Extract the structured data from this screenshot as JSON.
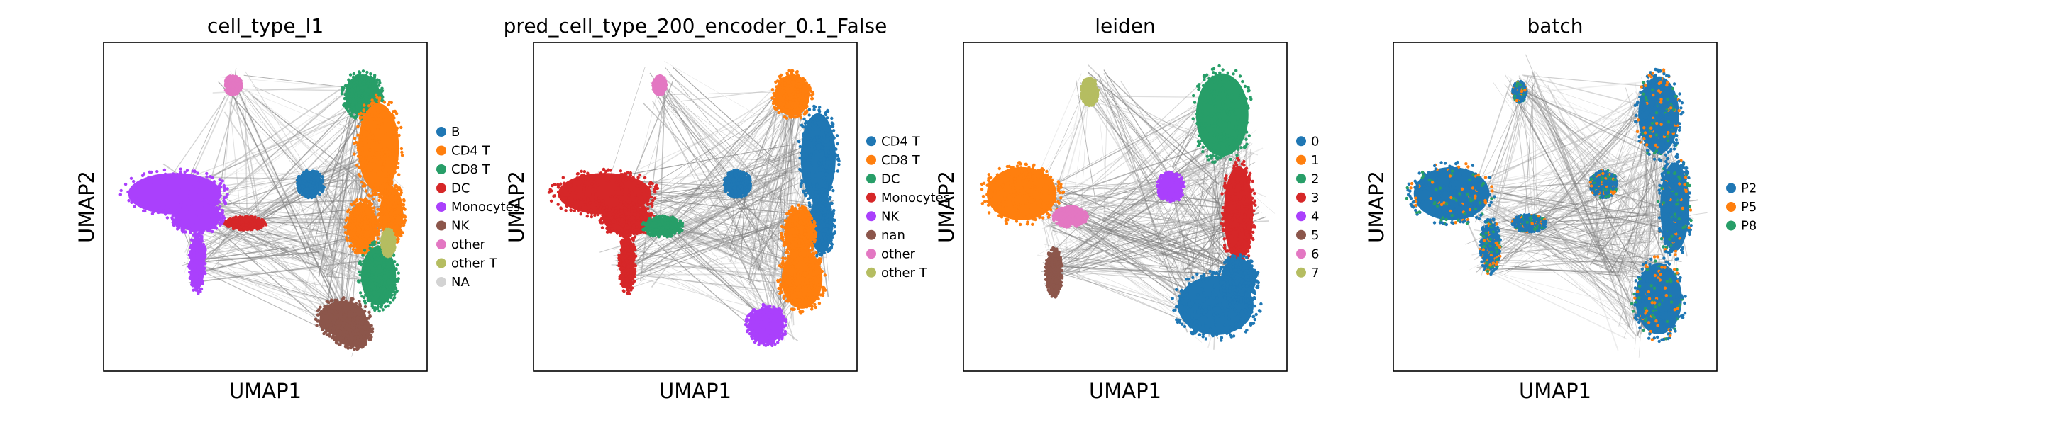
{
  "chart_data": [
    {
      "type": "scatter",
      "title": "cell_type_l1",
      "xlabel": "UMAP1",
      "ylabel": "UMAP2",
      "legend_position": "right",
      "series": [
        {
          "name": "B",
          "color": "#1f77b4"
        },
        {
          "name": "CD4 T",
          "color": "#ff7f0e"
        },
        {
          "name": "CD8 T",
          "color": "#279e68"
        },
        {
          "name": "DC",
          "color": "#d62728"
        },
        {
          "name": "Monocytes",
          "color": "#aa40fc"
        },
        {
          "name": "NK",
          "color": "#8c564b"
        },
        {
          "name": "other",
          "color": "#e377c2"
        },
        {
          "name": "other T",
          "color": "#b5bd61"
        },
        {
          "name": "NA",
          "color": "#d3d3d3"
        }
      ],
      "clusters": [
        {
          "cx": 0.4,
          "cy": 0.13,
          "rx": 0.025,
          "ry": 0.028,
          "color": "#e377c2"
        },
        {
          "cx": 0.8,
          "cy": 0.16,
          "rx": 0.06,
          "ry": 0.07,
          "color": "#279e68"
        },
        {
          "cx": 0.85,
          "cy": 0.32,
          "rx": 0.07,
          "ry": 0.15,
          "color": "#ff7f0e"
        },
        {
          "cx": 0.89,
          "cy": 0.52,
          "rx": 0.04,
          "ry": 0.09,
          "color": "#ff7f0e"
        },
        {
          "cx": 0.8,
          "cy": 0.56,
          "rx": 0.05,
          "ry": 0.08,
          "color": "#ff7f0e"
        },
        {
          "cx": 0.85,
          "cy": 0.71,
          "rx": 0.06,
          "ry": 0.1,
          "color": "#279e68"
        },
        {
          "cx": 0.64,
          "cy": 0.43,
          "rx": 0.04,
          "ry": 0.04,
          "color": "#1f77b4"
        },
        {
          "cx": 0.74,
          "cy": 0.84,
          "rx": 0.08,
          "ry": 0.06,
          "color": "#8c564b"
        },
        {
          "cx": 0.77,
          "cy": 0.88,
          "rx": 0.06,
          "ry": 0.05,
          "color": "#8c564b"
        },
        {
          "cx": 0.22,
          "cy": 0.46,
          "rx": 0.16,
          "ry": 0.07,
          "color": "#aa40fc"
        },
        {
          "cx": 0.29,
          "cy": 0.53,
          "rx": 0.08,
          "ry": 0.05,
          "color": "#aa40fc"
        },
        {
          "cx": 0.29,
          "cy": 0.67,
          "rx": 0.025,
          "ry": 0.09,
          "color": "#aa40fc"
        },
        {
          "cx": 0.44,
          "cy": 0.55,
          "rx": 0.06,
          "ry": 0.02,
          "color": "#d62728"
        },
        {
          "cx": 0.88,
          "cy": 0.61,
          "rx": 0.02,
          "ry": 0.04,
          "color": "#b5bd61"
        }
      ]
    },
    {
      "type": "scatter",
      "title": "pred_cell_type_200_encoder_0.1_False",
      "xlabel": "UMAP1",
      "ylabel": "UMAP2",
      "legend_position": "right",
      "series": [
        {
          "name": "CD4 T",
          "color": "#1f77b4"
        },
        {
          "name": "CD8 T",
          "color": "#ff7f0e"
        },
        {
          "name": "DC",
          "color": "#279e68"
        },
        {
          "name": "Monocytes",
          "color": "#d62728"
        },
        {
          "name": "NK",
          "color": "#aa40fc"
        },
        {
          "name": "nan",
          "color": "#8c564b"
        },
        {
          "name": "other",
          "color": "#e377c2"
        },
        {
          "name": "other T",
          "color": "#b5bd61"
        }
      ],
      "clusters": [
        {
          "cx": 0.39,
          "cy": 0.13,
          "rx": 0.02,
          "ry": 0.028,
          "color": "#e377c2"
        },
        {
          "cx": 0.8,
          "cy": 0.16,
          "rx": 0.06,
          "ry": 0.07,
          "color": "#ff7f0e"
        },
        {
          "cx": 0.88,
          "cy": 0.35,
          "rx": 0.06,
          "ry": 0.15,
          "color": "#1f77b4"
        },
        {
          "cx": 0.89,
          "cy": 0.55,
          "rx": 0.04,
          "ry": 0.1,
          "color": "#1f77b4"
        },
        {
          "cx": 0.82,
          "cy": 0.58,
          "rx": 0.05,
          "ry": 0.08,
          "color": "#ff7f0e"
        },
        {
          "cx": 0.83,
          "cy": 0.72,
          "rx": 0.07,
          "ry": 0.1,
          "color": "#ff7f0e"
        },
        {
          "cx": 0.63,
          "cy": 0.43,
          "rx": 0.04,
          "ry": 0.04,
          "color": "#1f77b4"
        },
        {
          "cx": 0.72,
          "cy": 0.86,
          "rx": 0.06,
          "ry": 0.06,
          "color": "#aa40fc"
        },
        {
          "cx": 0.22,
          "cy": 0.46,
          "rx": 0.16,
          "ry": 0.07,
          "color": "#d62728"
        },
        {
          "cx": 0.29,
          "cy": 0.54,
          "rx": 0.08,
          "ry": 0.05,
          "color": "#d62728"
        },
        {
          "cx": 0.29,
          "cy": 0.67,
          "rx": 0.025,
          "ry": 0.09,
          "color": "#d62728"
        },
        {
          "cx": 0.4,
          "cy": 0.56,
          "rx": 0.06,
          "ry": 0.03,
          "color": "#279e68"
        }
      ]
    },
    {
      "type": "scatter",
      "title": "leiden",
      "xlabel": "UMAP1",
      "ylabel": "UMAP2",
      "legend_position": "right",
      "series": [
        {
          "name": "0",
          "color": "#1f77b4"
        },
        {
          "name": "1",
          "color": "#ff7f0e"
        },
        {
          "name": "2",
          "color": "#279e68"
        },
        {
          "name": "3",
          "color": "#d62728"
        },
        {
          "name": "4",
          "color": "#aa40fc"
        },
        {
          "name": "5",
          "color": "#8c564b"
        },
        {
          "name": "6",
          "color": "#e377c2"
        },
        {
          "name": "7",
          "color": "#b5bd61"
        }
      ],
      "clusters": [
        {
          "cx": 0.39,
          "cy": 0.15,
          "rx": 0.025,
          "ry": 0.04,
          "color": "#b5bd61"
        },
        {
          "cx": 0.8,
          "cy": 0.22,
          "rx": 0.09,
          "ry": 0.14,
          "color": "#279e68"
        },
        {
          "cx": 0.85,
          "cy": 0.52,
          "rx": 0.05,
          "ry": 0.16,
          "color": "#d62728"
        },
        {
          "cx": 0.64,
          "cy": 0.44,
          "rx": 0.04,
          "ry": 0.045,
          "color": "#aa40fc"
        },
        {
          "cx": 0.78,
          "cy": 0.8,
          "rx": 0.13,
          "ry": 0.1,
          "color": "#1f77b4"
        },
        {
          "cx": 0.85,
          "cy": 0.72,
          "rx": 0.06,
          "ry": 0.07,
          "color": "#1f77b4"
        },
        {
          "cx": 0.18,
          "cy": 0.46,
          "rx": 0.12,
          "ry": 0.09,
          "color": "#ff7f0e"
        },
        {
          "cx": 0.33,
          "cy": 0.53,
          "rx": 0.05,
          "ry": 0.03,
          "color": "#e377c2"
        },
        {
          "cx": 0.28,
          "cy": 0.7,
          "rx": 0.025,
          "ry": 0.07,
          "color": "#8c564b"
        }
      ]
    },
    {
      "type": "scatter",
      "title": "batch",
      "xlabel": "UMAP1",
      "ylabel": "UMAP2",
      "legend_position": "right",
      "series": [
        {
          "name": "P2",
          "color": "#1f77b4"
        },
        {
          "name": "P5",
          "color": "#ff7f0e"
        },
        {
          "name": "P8",
          "color": "#279e68"
        }
      ],
      "clusters": [
        {
          "cx": 0.39,
          "cy": 0.15,
          "rx": 0.02,
          "ry": 0.03,
          "color": "#1f77b4"
        },
        {
          "cx": 0.82,
          "cy": 0.22,
          "rx": 0.07,
          "ry": 0.13,
          "color": "#1f77b4"
        },
        {
          "cx": 0.87,
          "cy": 0.5,
          "rx": 0.05,
          "ry": 0.15,
          "color": "#1f77b4"
        },
        {
          "cx": 0.65,
          "cy": 0.43,
          "rx": 0.04,
          "ry": 0.04,
          "color": "#1f77b4"
        },
        {
          "cx": 0.82,
          "cy": 0.78,
          "rx": 0.08,
          "ry": 0.12,
          "color": "#1f77b4"
        },
        {
          "cx": 0.18,
          "cy": 0.46,
          "rx": 0.13,
          "ry": 0.09,
          "color": "#1f77b4"
        },
        {
          "cx": 0.3,
          "cy": 0.62,
          "rx": 0.03,
          "ry": 0.08,
          "color": "#1f77b4"
        },
        {
          "cx": 0.42,
          "cy": 0.55,
          "rx": 0.05,
          "ry": 0.025,
          "color": "#1f77b4"
        }
      ],
      "speckle": [
        "#ff7f0e",
        "#279e68"
      ]
    }
  ]
}
